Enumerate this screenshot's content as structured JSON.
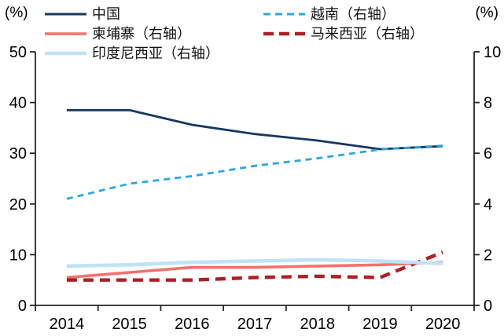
{
  "chart_data": {
    "type": "line",
    "title": "",
    "categories": [
      "2014",
      "2015",
      "2016",
      "2017",
      "2018",
      "2019",
      "2020"
    ],
    "left_axis": {
      "unit_label": "(%)",
      "min": 0,
      "max": 50,
      "ticks": [
        0,
        10,
        20,
        30,
        40,
        50
      ]
    },
    "right_axis": {
      "unit_label": "(%)",
      "min": 0,
      "max": 10,
      "ticks": [
        0,
        2,
        4,
        6,
        8,
        10
      ]
    },
    "grid": false,
    "legend_position": "top",
    "axis_color": "#262626",
    "series": [
      {
        "name": "中国",
        "axis": "left",
        "color": "#17375e",
        "style": "solid",
        "width": 2.8,
        "values": [
          38.5,
          38.5,
          35.6,
          33.8,
          32.5,
          30.8,
          31.4
        ]
      },
      {
        "name": "越南（右轴）",
        "axis": "right",
        "color": "#29a8e0",
        "style": "dashed",
        "width": 2.8,
        "values": [
          4.2,
          4.8,
          5.1,
          5.5,
          5.8,
          6.15,
          6.3
        ]
      },
      {
        "name": "柬埔寨（右轴）",
        "axis": "right",
        "color": "#f4716c",
        "style": "solid",
        "width": 3.6,
        "values": [
          1.1,
          1.3,
          1.5,
          1.5,
          1.55,
          1.6,
          1.7
        ]
      },
      {
        "name": "马来西亚（右轴）",
        "axis": "right",
        "color": "#b01e23",
        "style": "long-dashed",
        "width": 4.4,
        "values": [
          1.0,
          1.0,
          1.0,
          1.1,
          1.15,
          1.1,
          2.1
        ]
      },
      {
        "name": "印度尼西亚（右轴）",
        "axis": "right",
        "color": "#bfe3f5",
        "style": "solid",
        "width": 4.6,
        "values": [
          1.55,
          1.6,
          1.7,
          1.75,
          1.8,
          1.75,
          1.65
        ]
      }
    ]
  }
}
